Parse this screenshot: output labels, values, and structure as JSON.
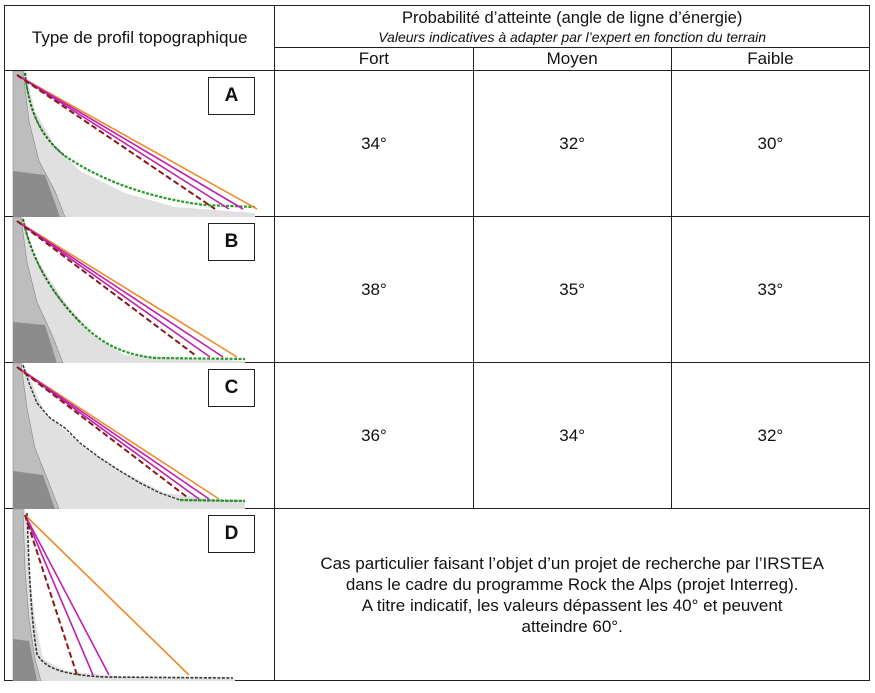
{
  "header": {
    "profile_col": "Type de profil topographique",
    "title": "Probabilité d’atteinte (angle de ligne d’énergie)",
    "subtitle": "Valeurs indicatives à adapter par l’expert en fonction du terrain",
    "levels": [
      "Fort",
      "Moyen",
      "Faible"
    ]
  },
  "rows": [
    {
      "letter": "A",
      "values": [
        "34°",
        "32°",
        "30°"
      ]
    },
    {
      "letter": "B",
      "values": [
        "38°",
        "35°",
        "33°"
      ]
    },
    {
      "letter": "C",
      "values": [
        "36°",
        "34°",
        "32°"
      ]
    },
    {
      "letter": "D",
      "note": [
        "Cas particulier faisant l’objet d’un projet de recherche par l’IRSTEA",
        "dans le cadre du programme Rock the Alps (projet Interreg).",
        "A titre indicatif, les valeurs dépassent les 40° et peuvent",
        "atteindre 60°."
      ]
    }
  ],
  "colors": {
    "line_orange": "#f08a2a",
    "line_magenta": "#c020b0",
    "line_dashed": "#8b1a1a",
    "runout_green": "#2a9a2a",
    "rock_grey": "#bdbdbd"
  }
}
